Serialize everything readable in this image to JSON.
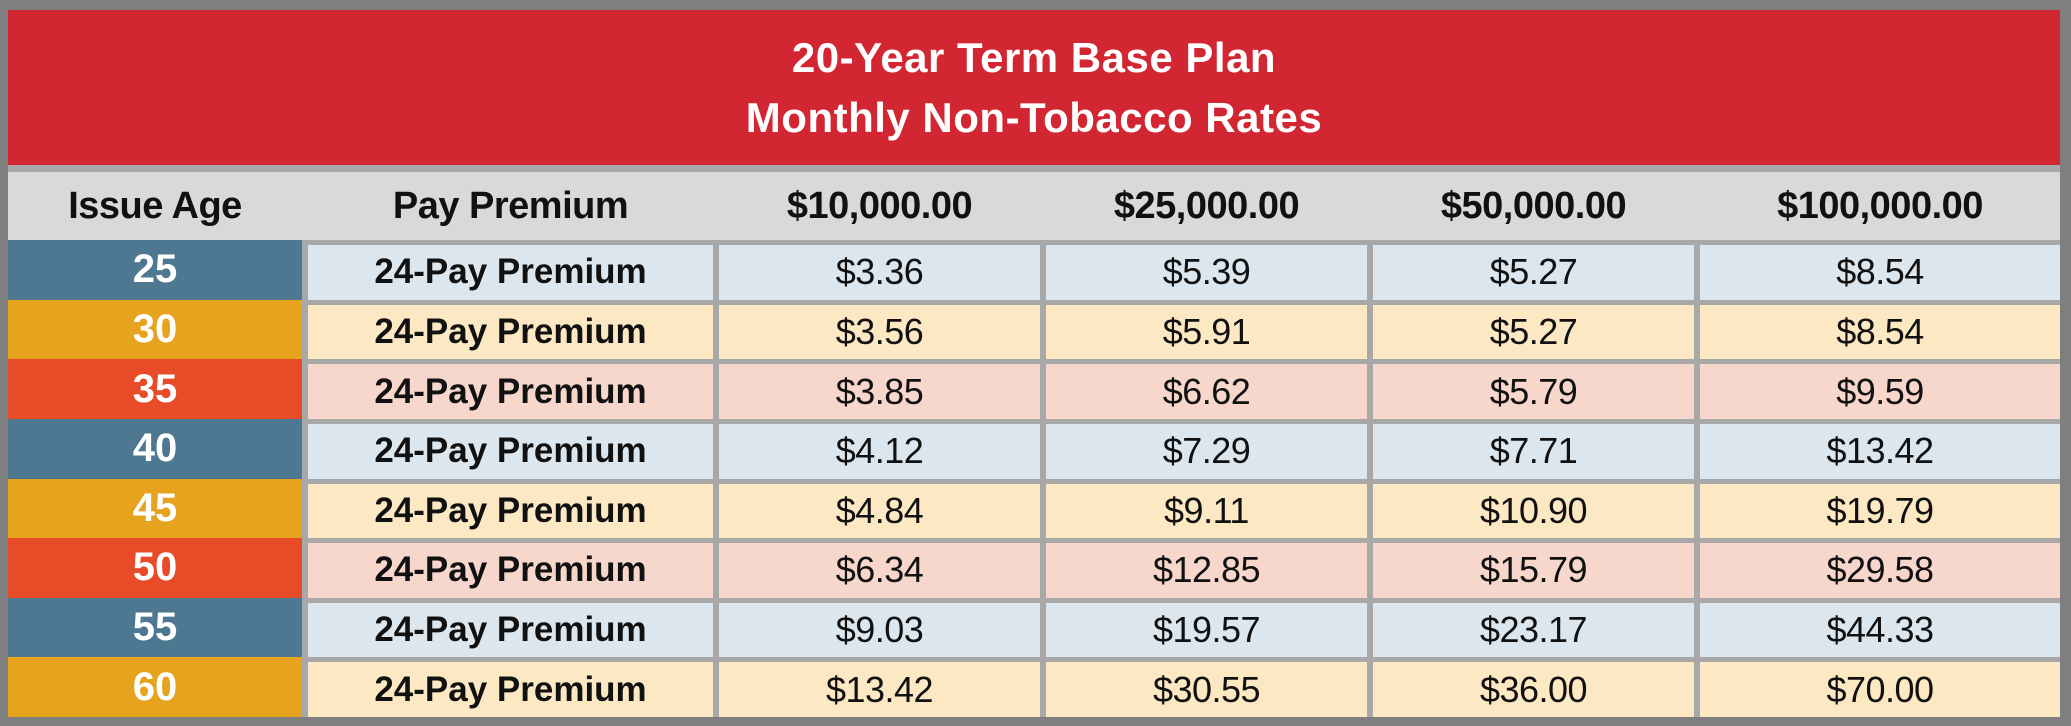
{
  "title": {
    "line1": "20-Year Term Base Plan",
    "line2": "Monthly Non-Tobacco Rates"
  },
  "columns": [
    "Issue Age",
    "Pay Premium",
    "$10,000.00",
    "$25,000.00",
    "$50,000.00",
    "$100,000.00"
  ],
  "rows": [
    {
      "age": "25",
      "theme": "blue",
      "premium_label": "24-Pay Premium",
      "values": [
        "$3.36",
        "$5.39",
        "$5.27",
        "$8.54"
      ]
    },
    {
      "age": "30",
      "theme": "gold",
      "premium_label": "24-Pay Premium",
      "values": [
        "$3.56",
        "$5.91",
        "$5.27",
        "$8.54"
      ]
    },
    {
      "age": "35",
      "theme": "red",
      "premium_label": "24-Pay Premium",
      "values": [
        "$3.85",
        "$6.62",
        "$5.79",
        "$9.59"
      ]
    },
    {
      "age": "40",
      "theme": "blue",
      "premium_label": "24-Pay Premium",
      "values": [
        "$4.12",
        "$7.29",
        "$7.71",
        "$13.42"
      ]
    },
    {
      "age": "45",
      "theme": "gold",
      "premium_label": "24-Pay Premium",
      "values": [
        "$4.84",
        "$9.11",
        "$10.90",
        "$19.79"
      ]
    },
    {
      "age": "50",
      "theme": "red",
      "premium_label": "24-Pay Premium",
      "values": [
        "$6.34",
        "$12.85",
        "$15.79",
        "$29.58"
      ]
    },
    {
      "age": "55",
      "theme": "blue",
      "premium_label": "24-Pay Premium",
      "values": [
        "$9.03",
        "$19.57",
        "$23.17",
        "$44.33"
      ]
    },
    {
      "age": "60",
      "theme": "gold",
      "premium_label": "24-Pay Premium",
      "values": [
        "$13.42",
        "$30.55",
        "$36.00",
        "$70.00"
      ]
    }
  ],
  "colors": {
    "frame_gray": "#7f7f7f",
    "title_red": "#d22632",
    "title_text": "#ffffff",
    "header_gray": "#d9d9d9",
    "separator_gray": "#a8a8a8",
    "age_blue": "#4e7891",
    "age_gold": "#e6a41e",
    "age_red": "#e74b27",
    "row_light_blue": "#dbe6ee",
    "row_light_yellow": "#fce8c2",
    "row_light_pink": "#f7d6cb",
    "cell_text": "#111111"
  }
}
